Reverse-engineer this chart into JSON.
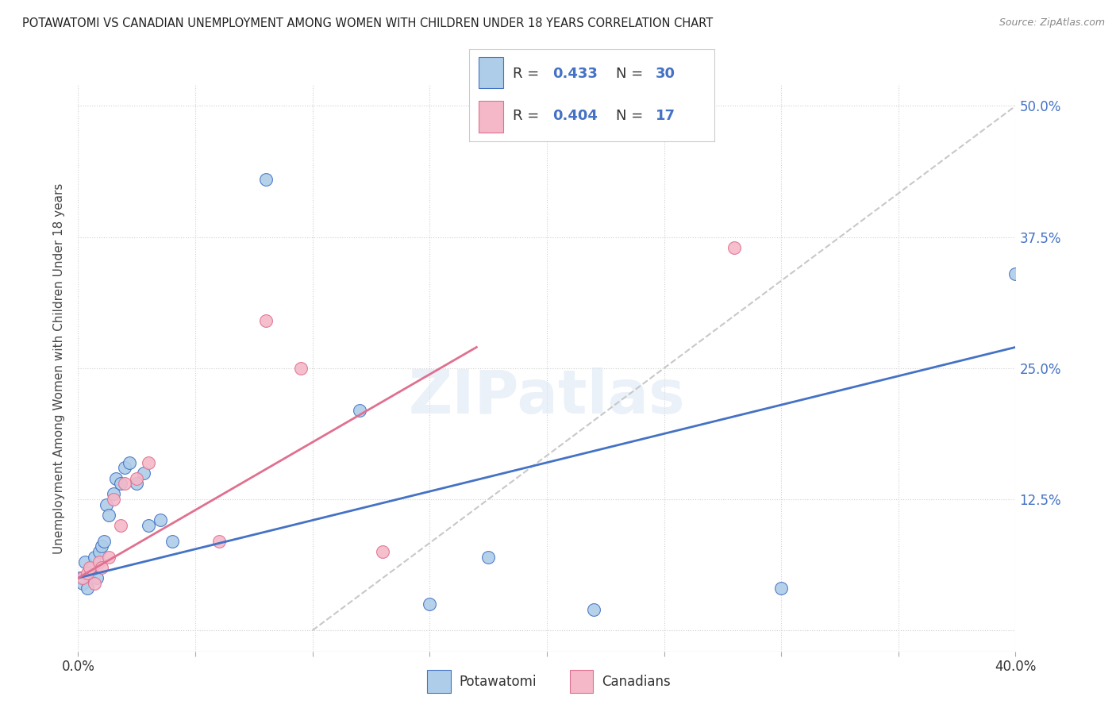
{
  "title": "POTAWATOMI VS CANADIAN UNEMPLOYMENT AMONG WOMEN WITH CHILDREN UNDER 18 YEARS CORRELATION CHART",
  "source": "Source: ZipAtlas.com",
  "ylabel": "Unemployment Among Women with Children Under 18 years",
  "xlim": [
    0.0,
    0.4
  ],
  "ylim": [
    -0.02,
    0.52
  ],
  "xticks": [
    0.0,
    0.05,
    0.1,
    0.15,
    0.2,
    0.25,
    0.3,
    0.35,
    0.4
  ],
  "yticks": [
    0.0,
    0.125,
    0.25,
    0.375,
    0.5
  ],
  "yticklabels": [
    "",
    "12.5%",
    "25.0%",
    "37.5%",
    "50.0%"
  ],
  "xticklabels_show": [
    "0.0%",
    "40.0%"
  ],
  "background_color": "#ffffff",
  "grid_color": "#d0d0d0",
  "watermark": "ZIPatlas",
  "blue_color": "#aecde8",
  "pink_color": "#f4b8c8",
  "blue_line_color": "#4472c4",
  "pink_line_color": "#e07090",
  "dashed_line_color": "#c8c8c8",
  "tick_label_color": "#4472c4",
  "potawatomi_x": [
    0.001,
    0.002,
    0.003,
    0.004,
    0.005,
    0.006,
    0.007,
    0.008,
    0.009,
    0.01,
    0.011,
    0.012,
    0.013,
    0.015,
    0.016,
    0.018,
    0.02,
    0.022,
    0.025,
    0.028,
    0.03,
    0.035,
    0.04,
    0.08,
    0.12,
    0.15,
    0.175,
    0.22,
    0.3,
    0.4
  ],
  "potawatomi_y": [
    0.05,
    0.045,
    0.065,
    0.04,
    0.055,
    0.06,
    0.07,
    0.05,
    0.075,
    0.08,
    0.085,
    0.12,
    0.11,
    0.13,
    0.145,
    0.14,
    0.155,
    0.16,
    0.14,
    0.15,
    0.1,
    0.105,
    0.085,
    0.43,
    0.21,
    0.025,
    0.07,
    0.02,
    0.04,
    0.34
  ],
  "canadians_x": [
    0.002,
    0.004,
    0.005,
    0.007,
    0.009,
    0.01,
    0.013,
    0.015,
    0.018,
    0.02,
    0.025,
    0.03,
    0.06,
    0.08,
    0.095,
    0.13,
    0.28
  ],
  "canadians_y": [
    0.05,
    0.055,
    0.06,
    0.045,
    0.065,
    0.06,
    0.07,
    0.125,
    0.1,
    0.14,
    0.145,
    0.16,
    0.085,
    0.295,
    0.25,
    0.075,
    0.365
  ],
  "blue_trendline": [
    0.0,
    0.05,
    0.4,
    0.27
  ],
  "pink_trendline": [
    0.0,
    0.05,
    0.17,
    0.27
  ],
  "dashed_line": [
    0.1,
    0.0,
    0.4,
    0.5
  ]
}
